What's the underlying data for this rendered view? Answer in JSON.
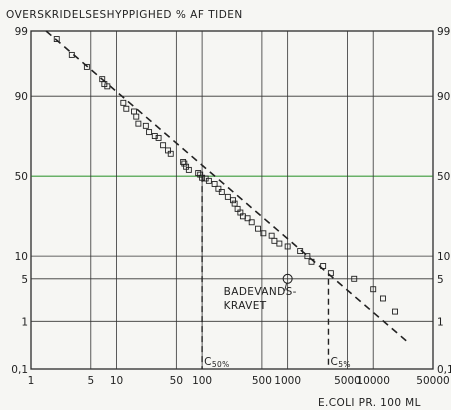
{
  "chart_data": {
    "type": "scatter",
    "title": "OVERSKRIDELSESHYPPIGHED % AF TIDEN",
    "xlabel": "E.COLI PR. 100 ML",
    "ylabel": "",
    "x_scale": "log",
    "y_scale": "probability",
    "xlim": [
      1,
      50000
    ],
    "ylim": [
      0.1,
      99
    ],
    "x_ticks": [
      1,
      5,
      10,
      50,
      100,
      500,
      1000,
      5000,
      10000,
      50000
    ],
    "x_tick_labels": [
      "1",
      "5",
      "10",
      "50",
      "100",
      "500",
      "1000",
      "5000",
      "10000",
      "50000"
    ],
    "y_ticks": [
      0.1,
      1,
      5,
      10,
      50,
      90,
      99
    ],
    "y_tick_labels_left": [
      "0,1",
      "1",
      "5",
      "10",
      "50",
      "90",
      "99"
    ],
    "y_tick_labels_right": [
      "0,1",
      "1",
      "5",
      "10",
      "50",
      "90",
      "99"
    ],
    "grid": true,
    "highlight_line": {
      "y": 50,
      "color": "#3a9a3a"
    },
    "series": [
      {
        "marker": "square",
        "x": [
          2,
          3,
          4.5,
          6.8,
          7.2,
          7.8,
          12,
          13,
          16,
          17,
          18,
          22,
          24,
          28,
          31,
          35,
          40,
          43,
          60,
          62,
          65,
          70,
          90,
          95,
          100,
          110,
          120,
          140,
          155,
          170,
          200,
          230,
          240,
          260,
          280,
          300,
          340,
          380,
          450,
          520,
          650,
          700,
          800,
          1000,
          1400,
          1700,
          1900,
          2600,
          3200,
          6000,
          10000,
          13000,
          18000
        ],
        "y": [
          98.6,
          97.4,
          96,
          94,
          93,
          92.5,
          88,
          86,
          85,
          83,
          80,
          79,
          76,
          74,
          73,
          69,
          66,
          64,
          59,
          58,
          56,
          54,
          52,
          51,
          49,
          48.5,
          47,
          45,
          42,
          40,
          37,
          35,
          33,
          30,
          28,
          26,
          25,
          23,
          20,
          18,
          17,
          15,
          14,
          13,
          11.5,
          10,
          8.5,
          7.5,
          6,
          5,
          3.5,
          2.5,
          1.5
        ]
      }
    ],
    "trend_line": {
      "style": "dashed",
      "from": [
        1.5,
        99
      ],
      "to": [
        25000,
        0.4
      ]
    },
    "annotations": [
      {
        "text_lines": [
          "BADEVANDS-",
          "KRAVET"
        ],
        "target": [
          1000,
          5
        ],
        "marker": "circle"
      },
      {
        "text": "C50%",
        "x": 100,
        "y": 50,
        "style": "dashed-drop"
      },
      {
        "text": "C5%",
        "x": 3000,
        "y": 5,
        "style": "dashed-drop"
      }
    ]
  }
}
